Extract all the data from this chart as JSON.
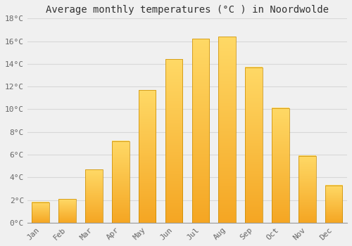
{
  "title": "Average monthly temperatures (°C ) in Noordwolde",
  "months": [
    "Jan",
    "Feb",
    "Mar",
    "Apr",
    "May",
    "Jun",
    "Jul",
    "Aug",
    "Sep",
    "Oct",
    "Nov",
    "Dec"
  ],
  "values": [
    1.8,
    2.1,
    4.7,
    7.2,
    11.7,
    14.4,
    16.2,
    16.4,
    13.7,
    10.1,
    5.9,
    3.3
  ],
  "bar_color_bottom": "#F5A623",
  "bar_color_top": "#FFD966",
  "bar_edge_color": "#C68A00",
  "ylim": [
    0,
    18
  ],
  "yticks": [
    0,
    2,
    4,
    6,
    8,
    10,
    12,
    14,
    16,
    18
  ],
  "ytick_labels": [
    "0°C",
    "2°C",
    "4°C",
    "6°C",
    "8°C",
    "10°C",
    "12°C",
    "14°C",
    "16°C",
    "18°C"
  ],
  "background_color": "#f0f0f0",
  "grid_color": "#d8d8d8",
  "title_fontsize": 10,
  "tick_fontsize": 8,
  "tick_color": "#666666",
  "bar_width": 0.65
}
